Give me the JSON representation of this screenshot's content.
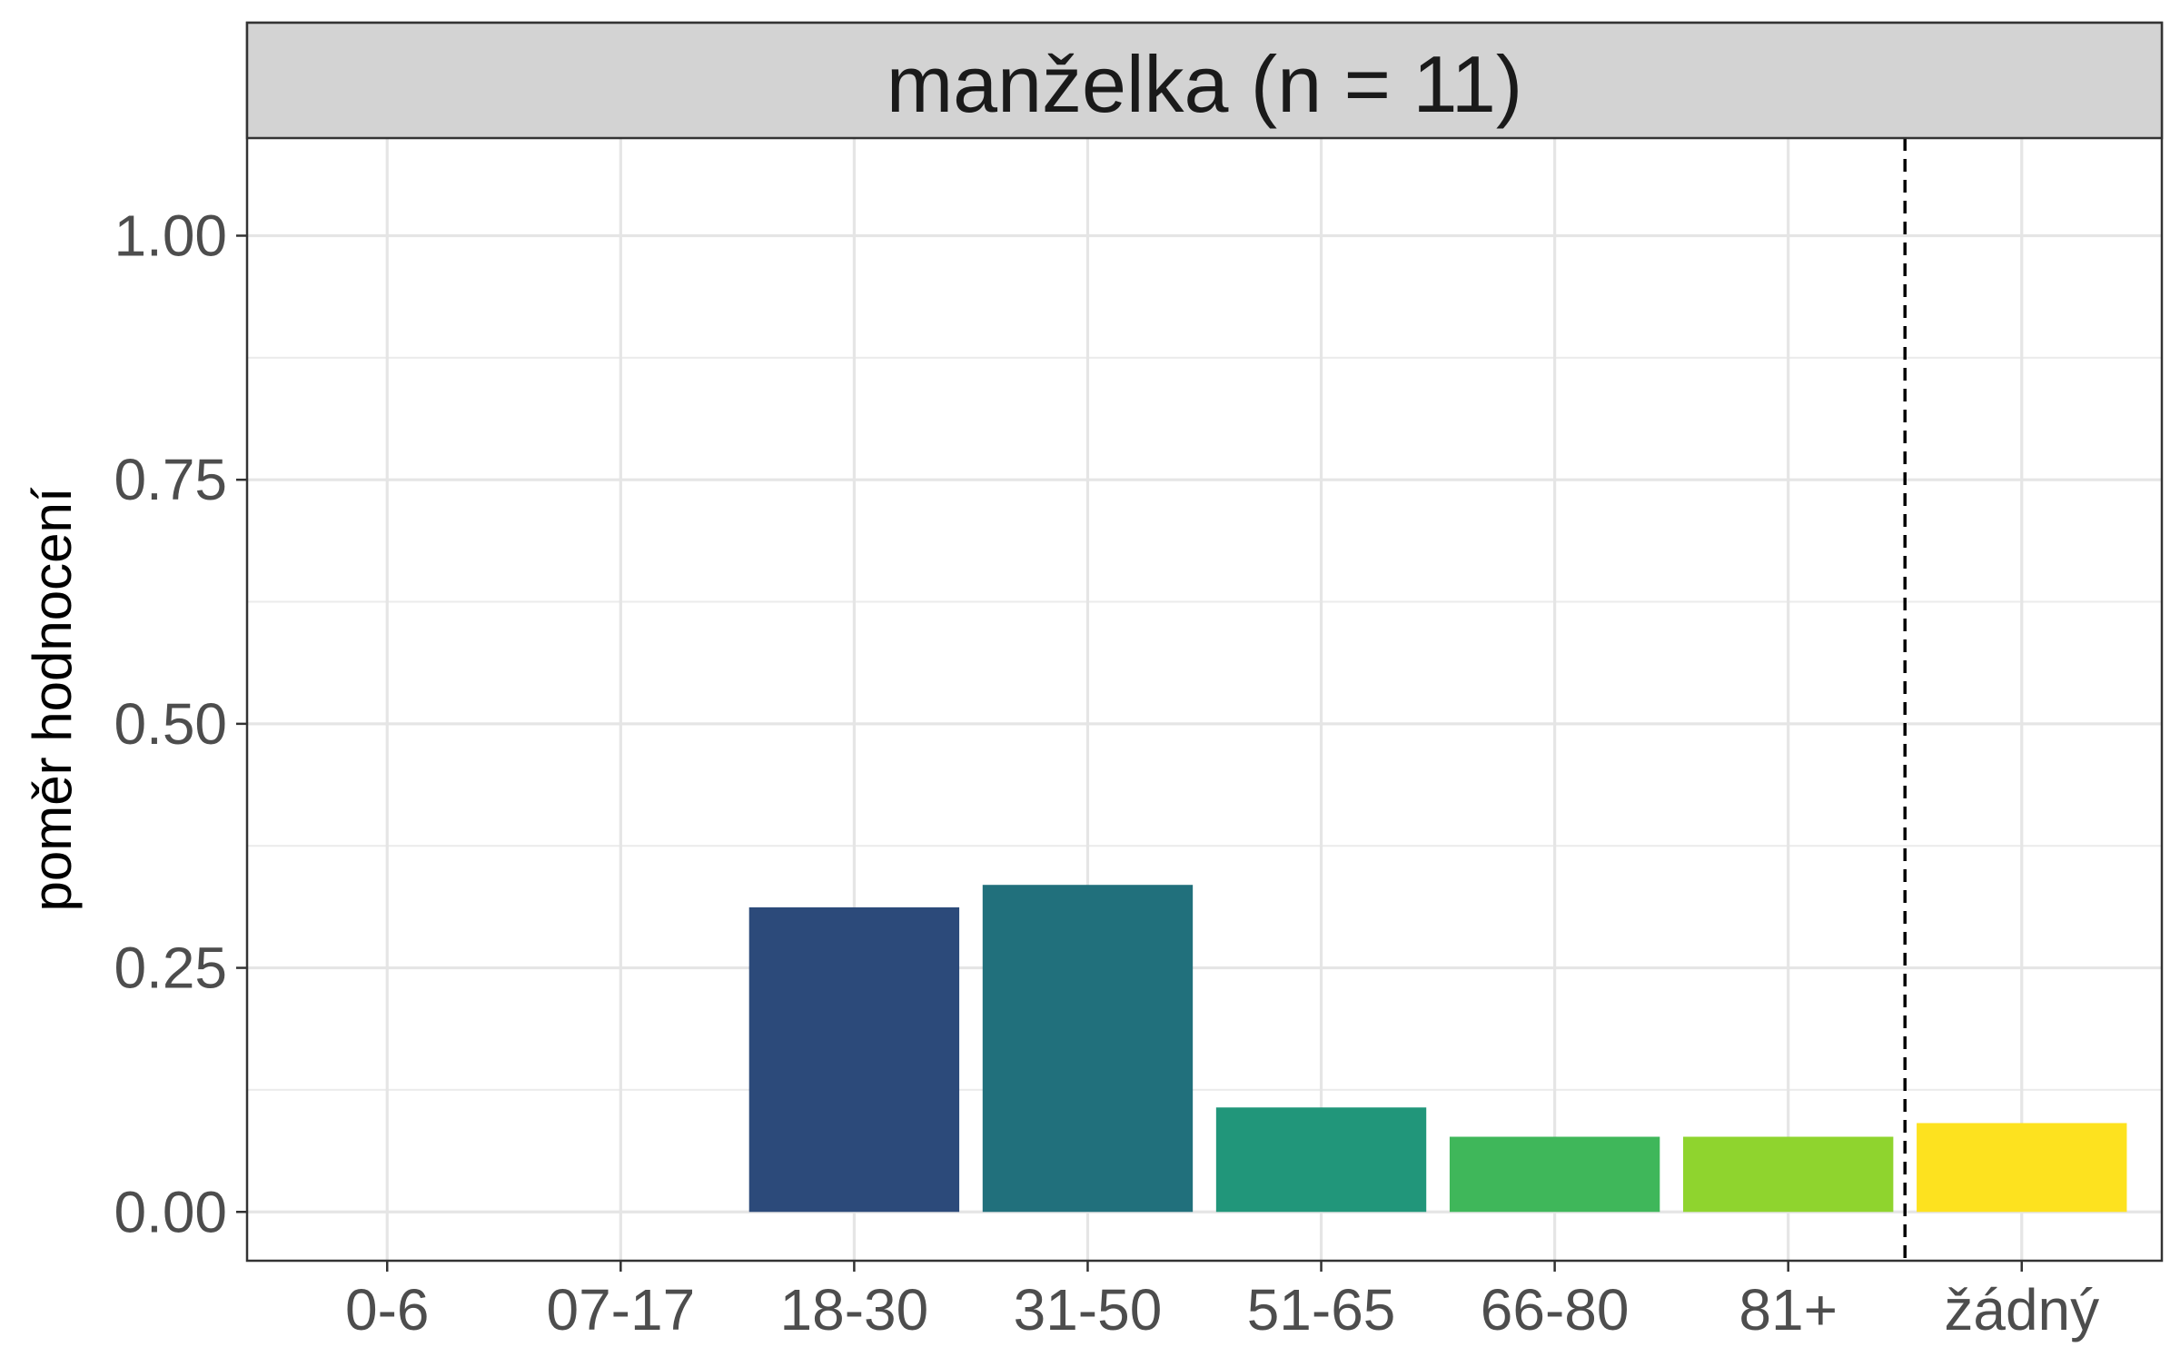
{
  "chart_data": {
    "type": "bar",
    "facet_label": "manželka (n = 11)",
    "xlabel": "",
    "ylabel": "poměr hodnocení",
    "categories": [
      "0-6",
      "07-17",
      "18-30",
      "31-50",
      "51-65",
      "66-80",
      "81+",
      "žádný"
    ],
    "values": [
      0,
      0,
      0.312,
      0.335,
      0.107,
      0.077,
      0.077,
      0.091
    ],
    "colors": [
      "#440154",
      "#46327E",
      "#2C4A7A",
      "#21707C",
      "#21967A",
      "#3FB75A",
      "#8FD42E",
      "#FDE21F"
    ],
    "ylim": [
      -0.05,
      1.1
    ],
    "yticks": [
      0,
      0.25,
      0.5,
      0.75,
      1.0
    ],
    "ytick_labels": [
      "0.00",
      "0.25",
      "0.50",
      "0.75",
      "1.00"
    ],
    "reference_line_after": "81+",
    "grid": true,
    "legend": "none"
  }
}
